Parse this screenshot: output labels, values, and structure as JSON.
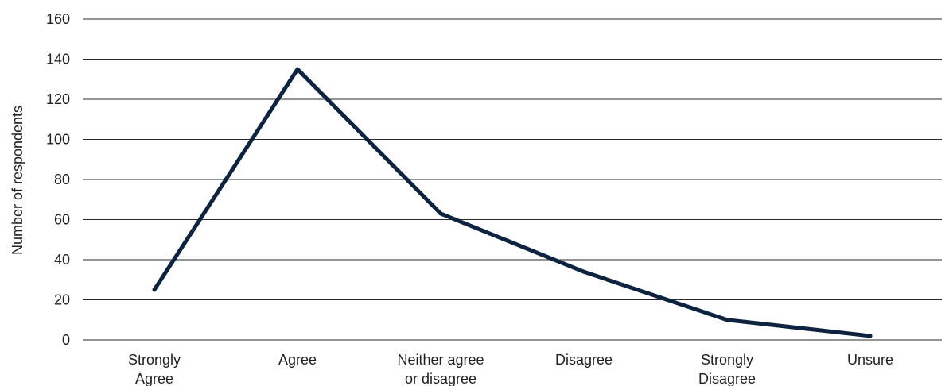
{
  "chart_data": {
    "type": "line",
    "title": "",
    "xlabel": "",
    "ylabel": "Number of respondents",
    "ylim": [
      0,
      160
    ],
    "yticks": [
      0,
      20,
      40,
      60,
      80,
      100,
      120,
      140,
      160
    ],
    "grid": true,
    "legend": "none",
    "categories": [
      [
        "Strongly",
        "Agree"
      ],
      [
        "Agree"
      ],
      [
        "Neither agree",
        "or disagree"
      ],
      [
        "Disagree"
      ],
      [
        "Strongly",
        "Disagree"
      ],
      [
        "Unsure"
      ]
    ],
    "series": [
      {
        "values": [
          25,
          135,
          63,
          34,
          10,
          2
        ],
        "color": "#0d2340"
      }
    ]
  }
}
